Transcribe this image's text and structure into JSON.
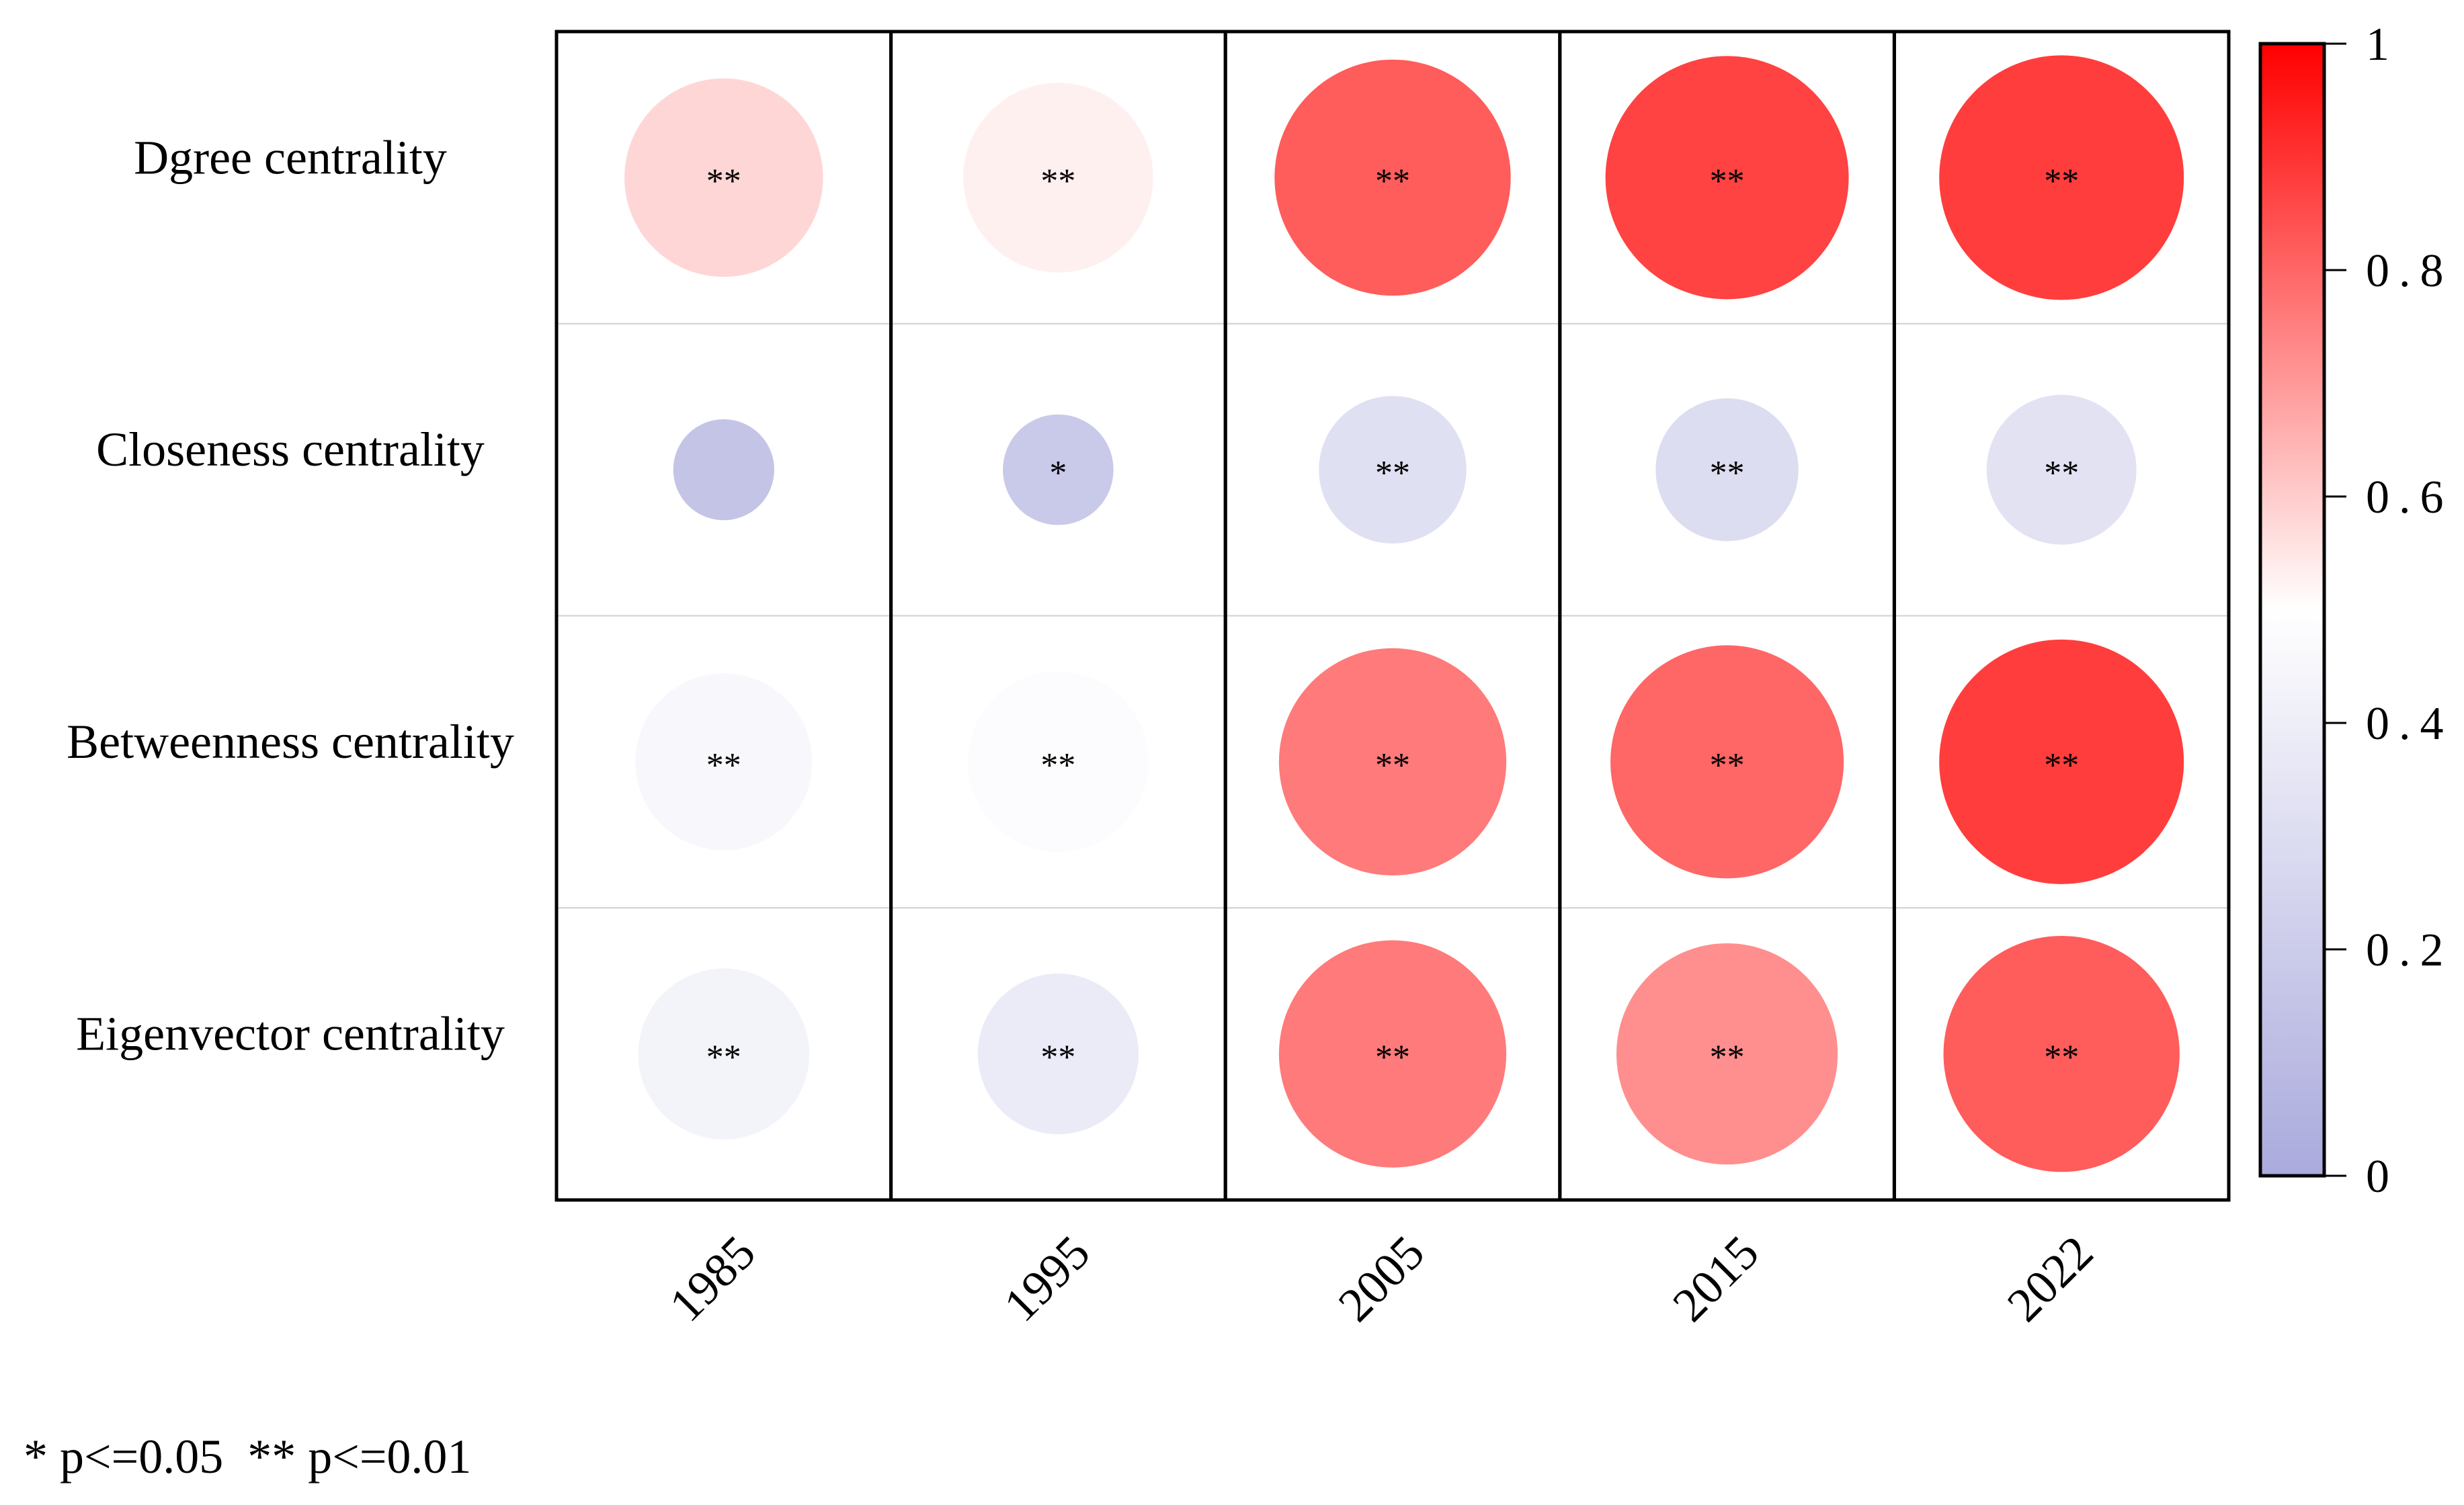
{
  "chart_data": {
    "type": "heatmap",
    "subtype": "circle-correlation-matrix",
    "rows": [
      "Dgree centrality",
      "Closeness centrality",
      "Betweenness centrality",
      "Eigenvector centrality"
    ],
    "columns": [
      "1985",
      "1995",
      "2005",
      "2015",
      "2022"
    ],
    "values": [
      [
        0.58,
        0.53,
        0.82,
        0.87,
        0.88
      ],
      [
        0.15,
        0.18,
        0.32,
        0.3,
        0.33
      ],
      [
        0.46,
        0.48,
        0.76,
        0.8,
        0.88
      ],
      [
        0.43,
        0.38,
        0.76,
        0.72,
        0.82
      ]
    ],
    "significance": [
      [
        "**",
        "**",
        "**",
        "**",
        "**"
      ],
      [
        "",
        "*",
        "**",
        "**",
        "**"
      ],
      [
        "**",
        "**",
        "**",
        "**",
        "**"
      ],
      [
        "**",
        "**",
        "**",
        "**",
        "**"
      ]
    ],
    "colorbar": {
      "range": [
        0,
        1
      ],
      "ticks": [
        "0",
        "0.2",
        "0.4",
        "0.6",
        "0.8",
        "1"
      ],
      "tick_values": [
        0,
        0.2,
        0.4,
        0.6,
        0.8,
        1
      ],
      "colors": {
        "low": "#aaaadd",
        "mid": "#ffffff",
        "high": "#ff0000"
      }
    },
    "footnote": "* p<=0.05  ** p<=0.01"
  }
}
